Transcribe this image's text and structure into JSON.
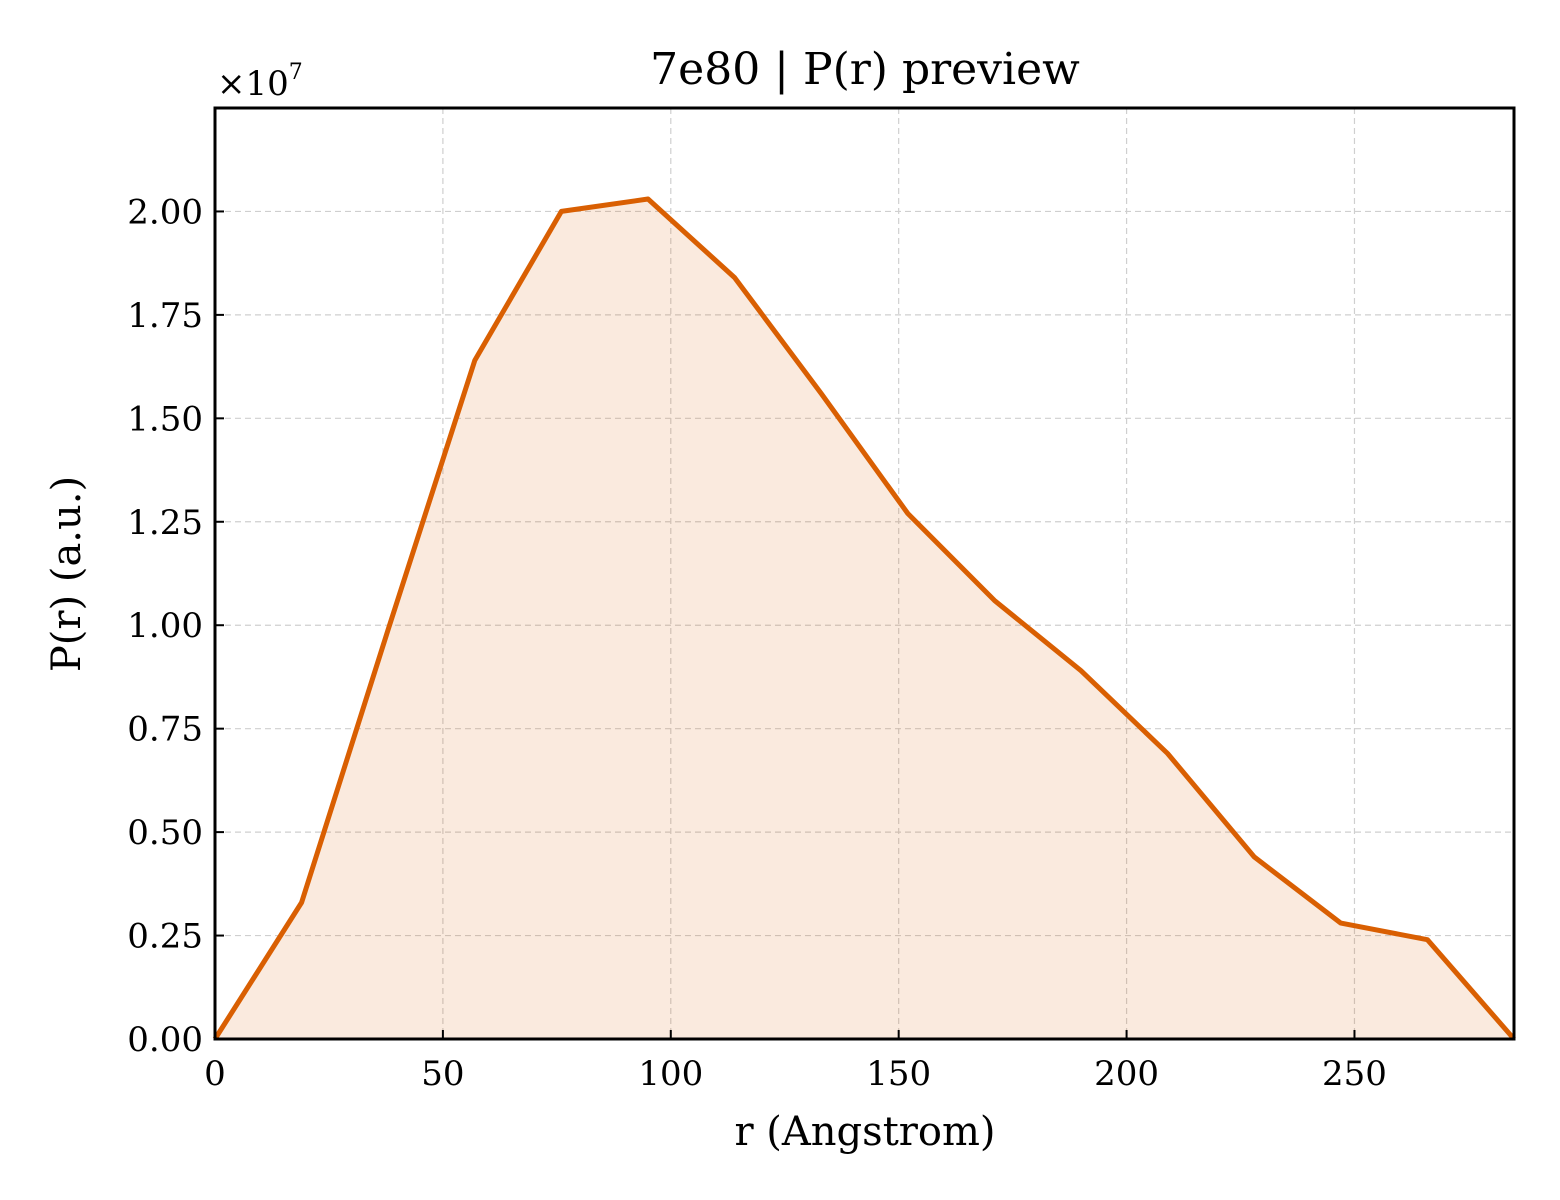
{
  "chart_data": {
    "type": "area",
    "title": "7e80 | P(r) preview",
    "xlabel": "r (Angstrom)",
    "ylabel": "P(r) (a.u.)",
    "y_multiplier_label": "×10",
    "y_multiplier_exponent": "7",
    "xlim": [
      0,
      285
    ],
    "ylim": [
      0,
      2.25
    ],
    "x_ticks": [
      0,
      50,
      100,
      150,
      200,
      250
    ],
    "x_tick_labels": [
      "0",
      "50",
      "100",
      "150",
      "200",
      "250"
    ],
    "y_ticks": [
      0,
      0.25,
      0.5,
      0.75,
      1.0,
      1.25,
      1.5,
      1.75,
      2.0
    ],
    "y_tick_labels": [
      "0.00",
      "0.25",
      "0.50",
      "0.75",
      "1.00",
      "1.25",
      "1.50",
      "1.75",
      "2.00"
    ],
    "grid": true,
    "series": [
      {
        "x": [
          0,
          19,
          38,
          57,
          76,
          95,
          114,
          133,
          152,
          171,
          190,
          209,
          228,
          247,
          266,
          285
        ],
        "y": [
          0,
          0.33,
          0.99,
          1.64,
          2.0,
          2.03,
          1.84,
          1.56,
          1.27,
          1.06,
          0.89,
          0.69,
          0.44,
          0.28,
          0.24,
          0.0
        ],
        "color": "#d95f02",
        "fill_color": "#d95f02",
        "fill_opacity": 0.13
      }
    ]
  }
}
